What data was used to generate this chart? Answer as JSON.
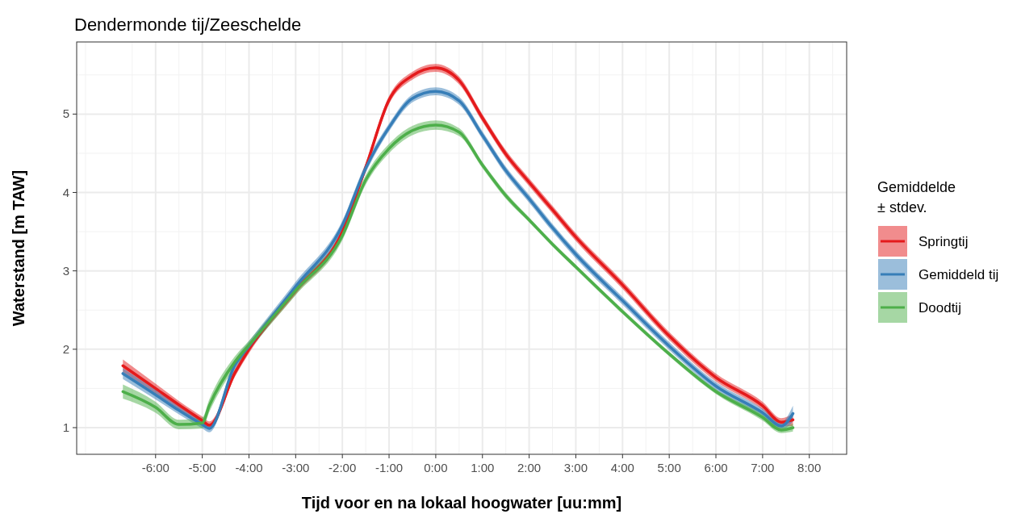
{
  "chart_data": {
    "type": "line",
    "title": "Dendermonde tij/Zeeschelde",
    "xlabel": "Tijd voor en na lokaal hoogwater [uu:mm]",
    "ylabel": "Waterstand [m TAW]",
    "legend_title": "Gemiddelde\n± stdev.",
    "legend": "right",
    "grid": true,
    "x": [
      -6.7,
      -6,
      -5.5,
      -5,
      -4.85,
      -4.3,
      -4,
      -3,
      -2,
      -1.5,
      -1,
      -0.5,
      0,
      0.5,
      1,
      1.5,
      2,
      2.5,
      3,
      4,
      5,
      6,
      7,
      7.4,
      7.65
    ],
    "xlim": [
      -7.69,
      8.8
    ],
    "ylim": [
      0.66,
      5.92
    ],
    "xticks": [
      {
        "value": -6,
        "label": "-6:00"
      },
      {
        "value": -5,
        "label": "-5:00"
      },
      {
        "value": -4,
        "label": "-4:00"
      },
      {
        "value": -3,
        "label": "-3:00"
      },
      {
        "value": -2,
        "label": "-2:00"
      },
      {
        "value": -1,
        "label": "-1:00"
      },
      {
        "value": 0,
        "label": "0:00"
      },
      {
        "value": 1,
        "label": "1:00"
      },
      {
        "value": 2,
        "label": "2:00"
      },
      {
        "value": 3,
        "label": "3:00"
      },
      {
        "value": 4,
        "label": "4:00"
      },
      {
        "value": 5,
        "label": "5:00"
      },
      {
        "value": 6,
        "label": "6:00"
      },
      {
        "value": 7,
        "label": "7:00"
      },
      {
        "value": 8,
        "label": "8:00"
      }
    ],
    "yticks": [
      1,
      2,
      3,
      4,
      5
    ],
    "series": [
      {
        "name": "Springtij",
        "color": "#e41a1c",
        "values": [
          1.79,
          1.5,
          1.29,
          1.09,
          1.03,
          1.7,
          2.0,
          2.75,
          3.5,
          4.32,
          5.18,
          5.49,
          5.59,
          5.43,
          4.95,
          4.49,
          4.13,
          3.78,
          3.43,
          2.82,
          2.17,
          1.64,
          1.28,
          1.07,
          1.1
        ],
        "lower": [
          1.71,
          1.44,
          1.24,
          1.04,
          0.98,
          1.65,
          1.95,
          2.7,
          3.45,
          4.27,
          5.13,
          5.44,
          5.54,
          5.38,
          4.9,
          4.44,
          4.08,
          3.73,
          3.38,
          2.77,
          2.12,
          1.59,
          1.23,
          1.02,
          1.02
        ],
        "upper": [
          1.87,
          1.56,
          1.34,
          1.14,
          1.08,
          1.75,
          2.05,
          2.8,
          3.55,
          4.37,
          5.23,
          5.54,
          5.64,
          5.48,
          5.0,
          4.54,
          4.18,
          3.83,
          3.48,
          2.87,
          2.22,
          1.69,
          1.33,
          1.12,
          1.18
        ]
      },
      {
        "name": "Gemiddeld tij",
        "color": "#377eb8",
        "values": [
          1.69,
          1.42,
          1.22,
          1.04,
          0.99,
          1.8,
          2.04,
          2.8,
          3.58,
          4.31,
          4.83,
          5.2,
          5.29,
          5.17,
          4.73,
          4.28,
          3.92,
          3.55,
          3.21,
          2.62,
          2.04,
          1.53,
          1.19,
          1.02,
          1.18
        ],
        "lower": [
          1.62,
          1.36,
          1.17,
          0.99,
          0.94,
          1.74,
          1.98,
          2.74,
          3.52,
          4.25,
          4.78,
          5.15,
          5.24,
          5.12,
          4.68,
          4.23,
          3.87,
          3.5,
          3.16,
          2.57,
          1.99,
          1.48,
          1.14,
          0.97,
          1.08
        ],
        "upper": [
          1.76,
          1.48,
          1.27,
          1.09,
          1.04,
          1.86,
          2.1,
          2.86,
          3.64,
          4.37,
          4.88,
          5.25,
          5.34,
          5.22,
          4.78,
          4.33,
          3.97,
          3.6,
          3.26,
          2.67,
          2.09,
          1.58,
          1.24,
          1.07,
          1.28
        ]
      },
      {
        "name": "Doodtij",
        "color": "#4daf4a",
        "values": [
          1.46,
          1.26,
          1.04,
          1.06,
          1.28,
          1.84,
          2.05,
          2.75,
          3.45,
          4.16,
          4.56,
          4.79,
          4.86,
          4.77,
          4.35,
          3.96,
          3.65,
          3.34,
          3.05,
          2.48,
          1.94,
          1.46,
          1.13,
          0.97,
          1.0
        ],
        "lower": [
          1.37,
          1.19,
          0.98,
          0.99,
          1.2,
          1.77,
          1.99,
          2.69,
          3.39,
          4.1,
          4.5,
          4.73,
          4.8,
          4.72,
          4.31,
          3.92,
          3.62,
          3.31,
          3.02,
          2.45,
          1.91,
          1.43,
          1.09,
          0.93,
          0.95
        ],
        "upper": [
          1.55,
          1.33,
          1.1,
          1.13,
          1.36,
          1.91,
          2.11,
          2.81,
          3.51,
          4.22,
          4.62,
          4.85,
          4.92,
          4.82,
          4.39,
          4.0,
          3.68,
          3.37,
          3.08,
          2.51,
          1.97,
          1.49,
          1.17,
          1.01,
          1.05
        ]
      }
    ]
  }
}
